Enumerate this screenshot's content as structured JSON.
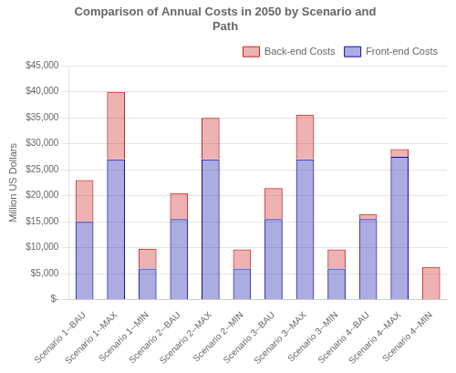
{
  "chart_data": {
    "type": "bar",
    "title": "Comparison of Annual Costs in 2050 by Scenario and\nPath",
    "ylabel": "Million US Dollars",
    "categories": [
      "Scenario 1--BAU",
      "Scenario 1--MAX",
      "Scenario 1--MIN",
      "Scenario 2--BAU",
      "Scenario 2--MAX",
      "Scenario 2--MIN",
      "Scenario 3--BAU",
      "Scenario 3--MAX",
      "Scenario 3--MIN",
      "Scenario 4--BAU",
      "Scenario 4--MAX",
      "Scenario 4--MIN"
    ],
    "series": [
      {
        "name": "Front-end Costs",
        "color": "#1111AA",
        "values": [
          15000,
          27000,
          6000,
          15500,
          27000,
          6000,
          15500,
          27000,
          6000,
          15500,
          27500,
          0
        ]
      },
      {
        "name": "Back-end Costs",
        "color": "#CC2222",
        "values": [
          8000,
          13000,
          3800,
          5000,
          8000,
          3700,
          6000,
          8600,
          3700,
          1000,
          1500,
          6300
        ]
      }
    ],
    "stacked": true,
    "ylim": [
      0,
      45000
    ],
    "yticks": [
      {
        "value": 0,
        "label": "$-"
      },
      {
        "value": 5000,
        "label": "$5,000"
      },
      {
        "value": 10000,
        "label": "$10,000"
      },
      {
        "value": 15000,
        "label": "$15,000"
      },
      {
        "value": 20000,
        "label": "$20,000"
      },
      {
        "value": 25000,
        "label": "$25,000"
      },
      {
        "value": 30000,
        "label": "$30,000"
      },
      {
        "value": 35000,
        "label": "$35,000"
      },
      {
        "value": 40000,
        "label": "$40,000"
      },
      {
        "value": 45000,
        "label": "$45,000"
      }
    ],
    "grid": true,
    "legend": "upper right"
  }
}
